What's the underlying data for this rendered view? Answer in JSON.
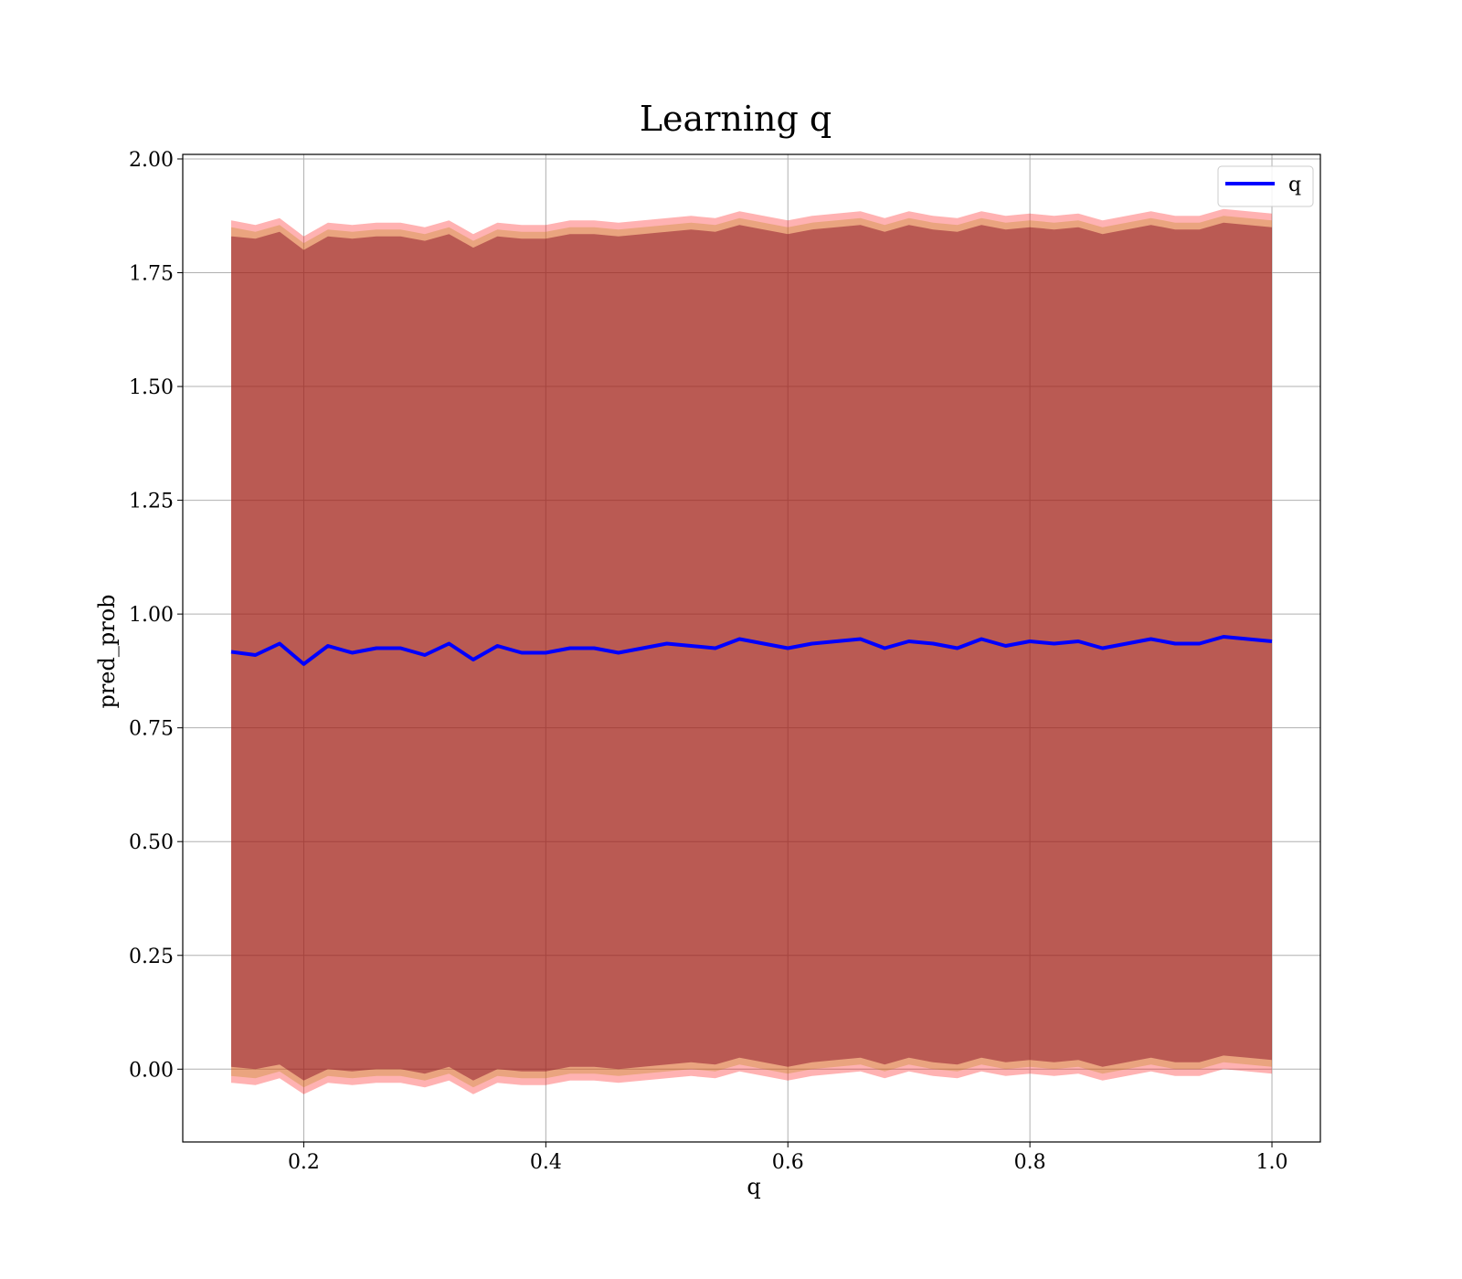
{
  "chart_data": {
    "type": "line",
    "title": "Learning q",
    "xlabel": "q",
    "ylabel": "pred_prob",
    "xlim": [
      0.1,
      1.04
    ],
    "ylim": [
      -0.16,
      2.01
    ],
    "xticks": [
      0.2,
      0.4,
      0.6,
      0.8,
      1.0
    ],
    "xtick_labels": [
      "0.2",
      "0.4",
      "0.6",
      "0.8",
      "1.0"
    ],
    "yticks": [
      0.0,
      0.25,
      0.5,
      0.75,
      1.0,
      1.25,
      1.5,
      1.75,
      2.0
    ],
    "ytick_labels": [
      "0.00",
      "0.25",
      "0.50",
      "0.75",
      "1.00",
      "1.25",
      "1.50",
      "1.75",
      "2.00"
    ],
    "grid": true,
    "legend": {
      "placement": "top-right",
      "entries": [
        "q"
      ]
    },
    "x": [
      0.14,
      0.16,
      0.18,
      0.2,
      0.22,
      0.24,
      0.26,
      0.28,
      0.3,
      0.32,
      0.34,
      0.36,
      0.38,
      0.4,
      0.42,
      0.44,
      0.46,
      0.48,
      0.5,
      0.52,
      0.54,
      0.56,
      0.58,
      0.6,
      0.62,
      0.64,
      0.66,
      0.68,
      0.7,
      0.72,
      0.74,
      0.76,
      0.78,
      0.8,
      0.82,
      0.84,
      0.86,
      0.88,
      0.9,
      0.92,
      0.94,
      0.96,
      0.98,
      1.0
    ],
    "series": [
      {
        "name": "q",
        "color": "#0000ff",
        "values": [
          0.917,
          0.91,
          0.935,
          0.89,
          0.93,
          0.915,
          0.925,
          0.925,
          0.91,
          0.935,
          0.9,
          0.93,
          0.915,
          0.915,
          0.925,
          0.925,
          0.915,
          0.925,
          0.935,
          0.93,
          0.925,
          0.945,
          0.935,
          0.925,
          0.935,
          0.94,
          0.945,
          0.925,
          0.94,
          0.935,
          0.925,
          0.945,
          0.93,
          0.94,
          0.935,
          0.94,
          0.925,
          0.935,
          0.945,
          0.935,
          0.935,
          0.95,
          0.945,
          0.94
        ]
      }
    ],
    "bands": [
      {
        "name": "outer",
        "color": "#ff0000",
        "opacity": 0.3,
        "upper": [
          1.865,
          1.855,
          1.87,
          1.83,
          1.86,
          1.855,
          1.86,
          1.86,
          1.85,
          1.865,
          1.835,
          1.86,
          1.855,
          1.855,
          1.865,
          1.865,
          1.86,
          1.865,
          1.87,
          1.875,
          1.87,
          1.885,
          1.875,
          1.865,
          1.875,
          1.88,
          1.885,
          1.87,
          1.885,
          1.875,
          1.87,
          1.885,
          1.875,
          1.88,
          1.875,
          1.88,
          1.865,
          1.875,
          1.885,
          1.875,
          1.875,
          1.89,
          1.885,
          1.88
        ],
        "lower": [
          -0.03,
          -0.035,
          -0.02,
          -0.055,
          -0.03,
          -0.035,
          -0.03,
          -0.03,
          -0.04,
          -0.025,
          -0.055,
          -0.03,
          -0.035,
          -0.035,
          -0.025,
          -0.025,
          -0.03,
          -0.025,
          -0.02,
          -0.015,
          -0.02,
          -0.005,
          -0.015,
          -0.025,
          -0.015,
          -0.01,
          -0.005,
          -0.02,
          -0.005,
          -0.015,
          -0.02,
          -0.005,
          -0.015,
          -0.01,
          -0.015,
          -0.01,
          -0.025,
          -0.015,
          -0.005,
          -0.015,
          -0.015,
          0.0,
          -0.005,
          -0.01
        ]
      },
      {
        "name": "middle",
        "color": "#b8860b",
        "opacity": 0.3,
        "upper": [
          1.85,
          1.84,
          1.855,
          1.815,
          1.845,
          1.84,
          1.845,
          1.845,
          1.835,
          1.85,
          1.82,
          1.845,
          1.84,
          1.84,
          1.85,
          1.85,
          1.845,
          1.85,
          1.855,
          1.86,
          1.855,
          1.87,
          1.86,
          1.85,
          1.86,
          1.865,
          1.87,
          1.855,
          1.87,
          1.86,
          1.855,
          1.87,
          1.86,
          1.865,
          1.86,
          1.865,
          1.85,
          1.86,
          1.87,
          1.86,
          1.86,
          1.875,
          1.87,
          1.865
        ],
        "lower": [
          -0.015,
          -0.02,
          -0.005,
          -0.04,
          -0.015,
          -0.02,
          -0.015,
          -0.015,
          -0.025,
          -0.01,
          -0.04,
          -0.015,
          -0.02,
          -0.02,
          -0.01,
          -0.01,
          -0.015,
          -0.01,
          -0.005,
          0.0,
          -0.005,
          0.01,
          0.0,
          -0.01,
          0.0,
          0.005,
          0.01,
          -0.005,
          0.01,
          0.0,
          -0.005,
          0.01,
          0.0,
          0.005,
          0.0,
          0.005,
          -0.01,
          0.0,
          0.01,
          0.0,
          0.0,
          0.015,
          0.01,
          0.005
        ]
      },
      {
        "name": "inner",
        "color": "#800020",
        "opacity": 0.45,
        "upper": [
          1.83,
          1.825,
          1.84,
          1.8,
          1.83,
          1.825,
          1.83,
          1.83,
          1.82,
          1.835,
          1.805,
          1.83,
          1.825,
          1.825,
          1.835,
          1.835,
          1.83,
          1.835,
          1.84,
          1.845,
          1.84,
          1.855,
          1.845,
          1.835,
          1.845,
          1.85,
          1.855,
          1.84,
          1.855,
          1.845,
          1.84,
          1.855,
          1.845,
          1.85,
          1.845,
          1.85,
          1.835,
          1.845,
          1.855,
          1.845,
          1.845,
          1.86,
          1.855,
          1.85
        ],
        "lower": [
          0.005,
          0.0,
          0.01,
          -0.025,
          0.0,
          -0.005,
          0.0,
          0.0,
          -0.01,
          0.005,
          -0.025,
          0.0,
          -0.005,
          -0.005,
          0.005,
          0.005,
          0.0,
          0.005,
          0.01,
          0.015,
          0.01,
          0.025,
          0.015,
          0.005,
          0.015,
          0.02,
          0.025,
          0.01,
          0.025,
          0.015,
          0.01,
          0.025,
          0.015,
          0.02,
          0.015,
          0.02,
          0.005,
          0.015,
          0.025,
          0.015,
          0.015,
          0.03,
          0.025,
          0.02
        ]
      }
    ]
  }
}
